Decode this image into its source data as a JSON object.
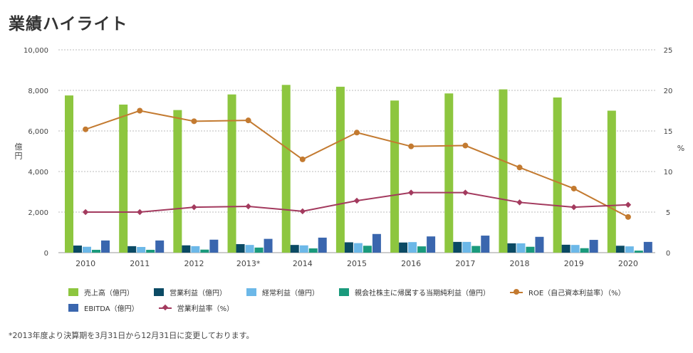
{
  "page": {
    "title": "業績ハイライト"
  },
  "footnote": "*2013年度より決算期を3月31日から12月31日に変更しております。",
  "chart_data": {
    "type": "bar",
    "categories": [
      "2010",
      "2011",
      "2012",
      "2013*",
      "2014",
      "2015",
      "2016",
      "2017",
      "2018",
      "2019",
      "2020"
    ],
    "y_left": {
      "label": "億円",
      "ticks": [
        "0",
        "2,000",
        "4,000",
        "6,000",
        "8,000",
        "10,000"
      ],
      "min": 0,
      "max": 10000
    },
    "y_right": {
      "label": "%",
      "ticks": [
        "0",
        "5",
        "10",
        "15",
        "20",
        "25"
      ],
      "min": 0,
      "max": 25
    },
    "grid": true,
    "legend_position": "bottom",
    "series": [
      {
        "name": "売上高（億円）",
        "type": "bar",
        "axis": "left",
        "color": "#8dc63f",
        "values": [
          7750,
          7300,
          7030,
          7800,
          8270,
          8180,
          7500,
          7850,
          8050,
          7650,
          7000
        ]
      },
      {
        "name": "営業利益（億円）",
        "type": "bar",
        "axis": "left",
        "color": "#0b4a64",
        "values": [
          350,
          320,
          360,
          420,
          380,
          510,
          500,
          530,
          460,
          390,
          340
        ]
      },
      {
        "name": "経常利益（億円）",
        "type": "bar",
        "axis": "left",
        "color": "#6cb8e8",
        "values": [
          290,
          280,
          320,
          380,
          360,
          470,
          520,
          530,
          460,
          380,
          310
        ]
      },
      {
        "name": "親会社株主に帰属する当期純利益（億円）",
        "type": "bar",
        "axis": "left",
        "color": "#1a9a7c",
        "values": [
          140,
          140,
          150,
          250,
          210,
          340,
          310,
          330,
          290,
          220,
          100
        ]
      },
      {
        "name": "EBITDA（億円）",
        "type": "bar",
        "axis": "left",
        "color": "#3a66ae",
        "values": [
          600,
          600,
          640,
          680,
          740,
          920,
          800,
          840,
          780,
          630,
          530
        ]
      },
      {
        "name": "ROE（自己資本利益率）（%）",
        "type": "line",
        "axis": "right",
        "color": "#c37a30",
        "marker": "circle",
        "values": [
          15.2,
          17.5,
          16.2,
          16.3,
          11.5,
          14.8,
          13.1,
          13.2,
          10.5,
          7.9,
          4.4
        ]
      },
      {
        "name": "営業利益率（%）",
        "type": "line",
        "axis": "right",
        "color": "#a33a5e",
        "marker": "diamond",
        "values": [
          5.0,
          5.0,
          5.6,
          5.7,
          5.1,
          6.4,
          7.4,
          7.4,
          6.2,
          5.6,
          5.9
        ]
      }
    ]
  }
}
